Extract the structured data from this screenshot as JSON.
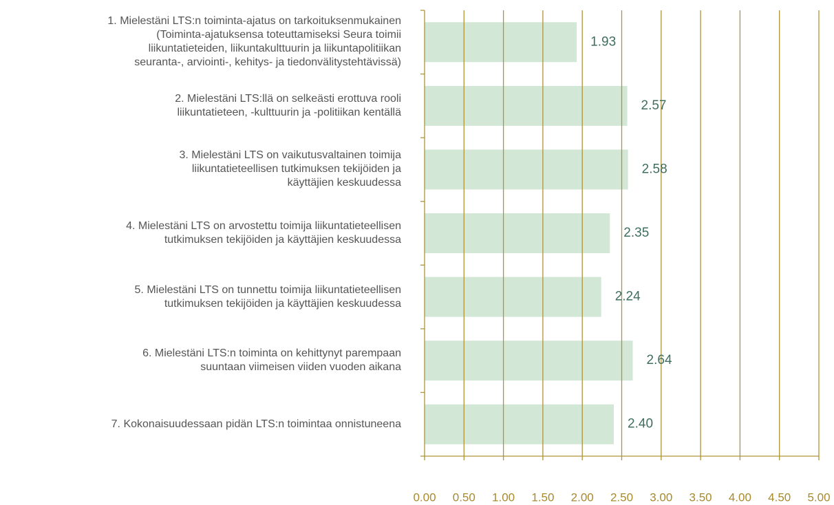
{
  "chart_data": {
    "type": "hbar",
    "categories": [
      "1. Mielestäni LTS:n toiminta-ajatus on tarkoituksenmukainen\n(Toiminta-ajatuksensa toteuttamiseksi Seura toimii\nliikuntatieteiden, liikuntakulttuurin ja liikuntapolitiikan\nseuranta-, arviointi-, kehitys- ja tiedonvälitystehtävissä)",
      "2. Mielestäni LTS:llä on selkeästi erottuva rooli\nliikuntatieteen, -kulttuurin ja -politiikan kentällä",
      "3. Mielestäni LTS on vaikutusvaltainen toimija\nliikuntatieteellisen tutkimuksen tekijöiden ja\nkäyttäjien keskuudessa",
      "4. Mielestäni LTS on arvostettu toimija liikuntatieteellisen\ntutkimuksen tekijöiden ja käyttäjien keskuudessa",
      "5. Mielestäni LTS on tunnettu toimija liikuntatieteellisen\ntutkimuksen tekijöiden ja käyttäjien keskuudessa",
      "6. Mielestäni LTS:n toiminta on kehittynyt parempaan\nsuuntaan viimeisen viiden vuoden aikana",
      "7. Kokonaisuudessaan pidän LTS:n toimintaa onnistuneena"
    ],
    "values": [
      1.93,
      2.57,
      2.58,
      2.35,
      2.24,
      2.64,
      2.4
    ],
    "value_labels": [
      "1.93",
      "2.57",
      "2.58",
      "2.35",
      "2.24",
      "2.64",
      "2.40"
    ],
    "color": "#d3e7d7",
    "xlim": [
      0,
      5
    ],
    "xticks": [
      {
        "value": 0,
        "label": "0.00"
      },
      {
        "value": 0.5,
        "label": "0.50"
      },
      {
        "value": 1,
        "label": "1.00"
      },
      {
        "value": 1.5,
        "label": "1.50"
      },
      {
        "value": 2,
        "label": "2.00"
      },
      {
        "value": 2.5,
        "label": "2.50"
      },
      {
        "value": 3,
        "label": "3.00"
      },
      {
        "value": 3.5,
        "label": "3.50"
      },
      {
        "value": 4,
        "label": "4.00"
      },
      {
        "value": 4.5,
        "label": "4.50"
      },
      {
        "value": 5,
        "label": "5.00"
      }
    ],
    "grid": true
  }
}
